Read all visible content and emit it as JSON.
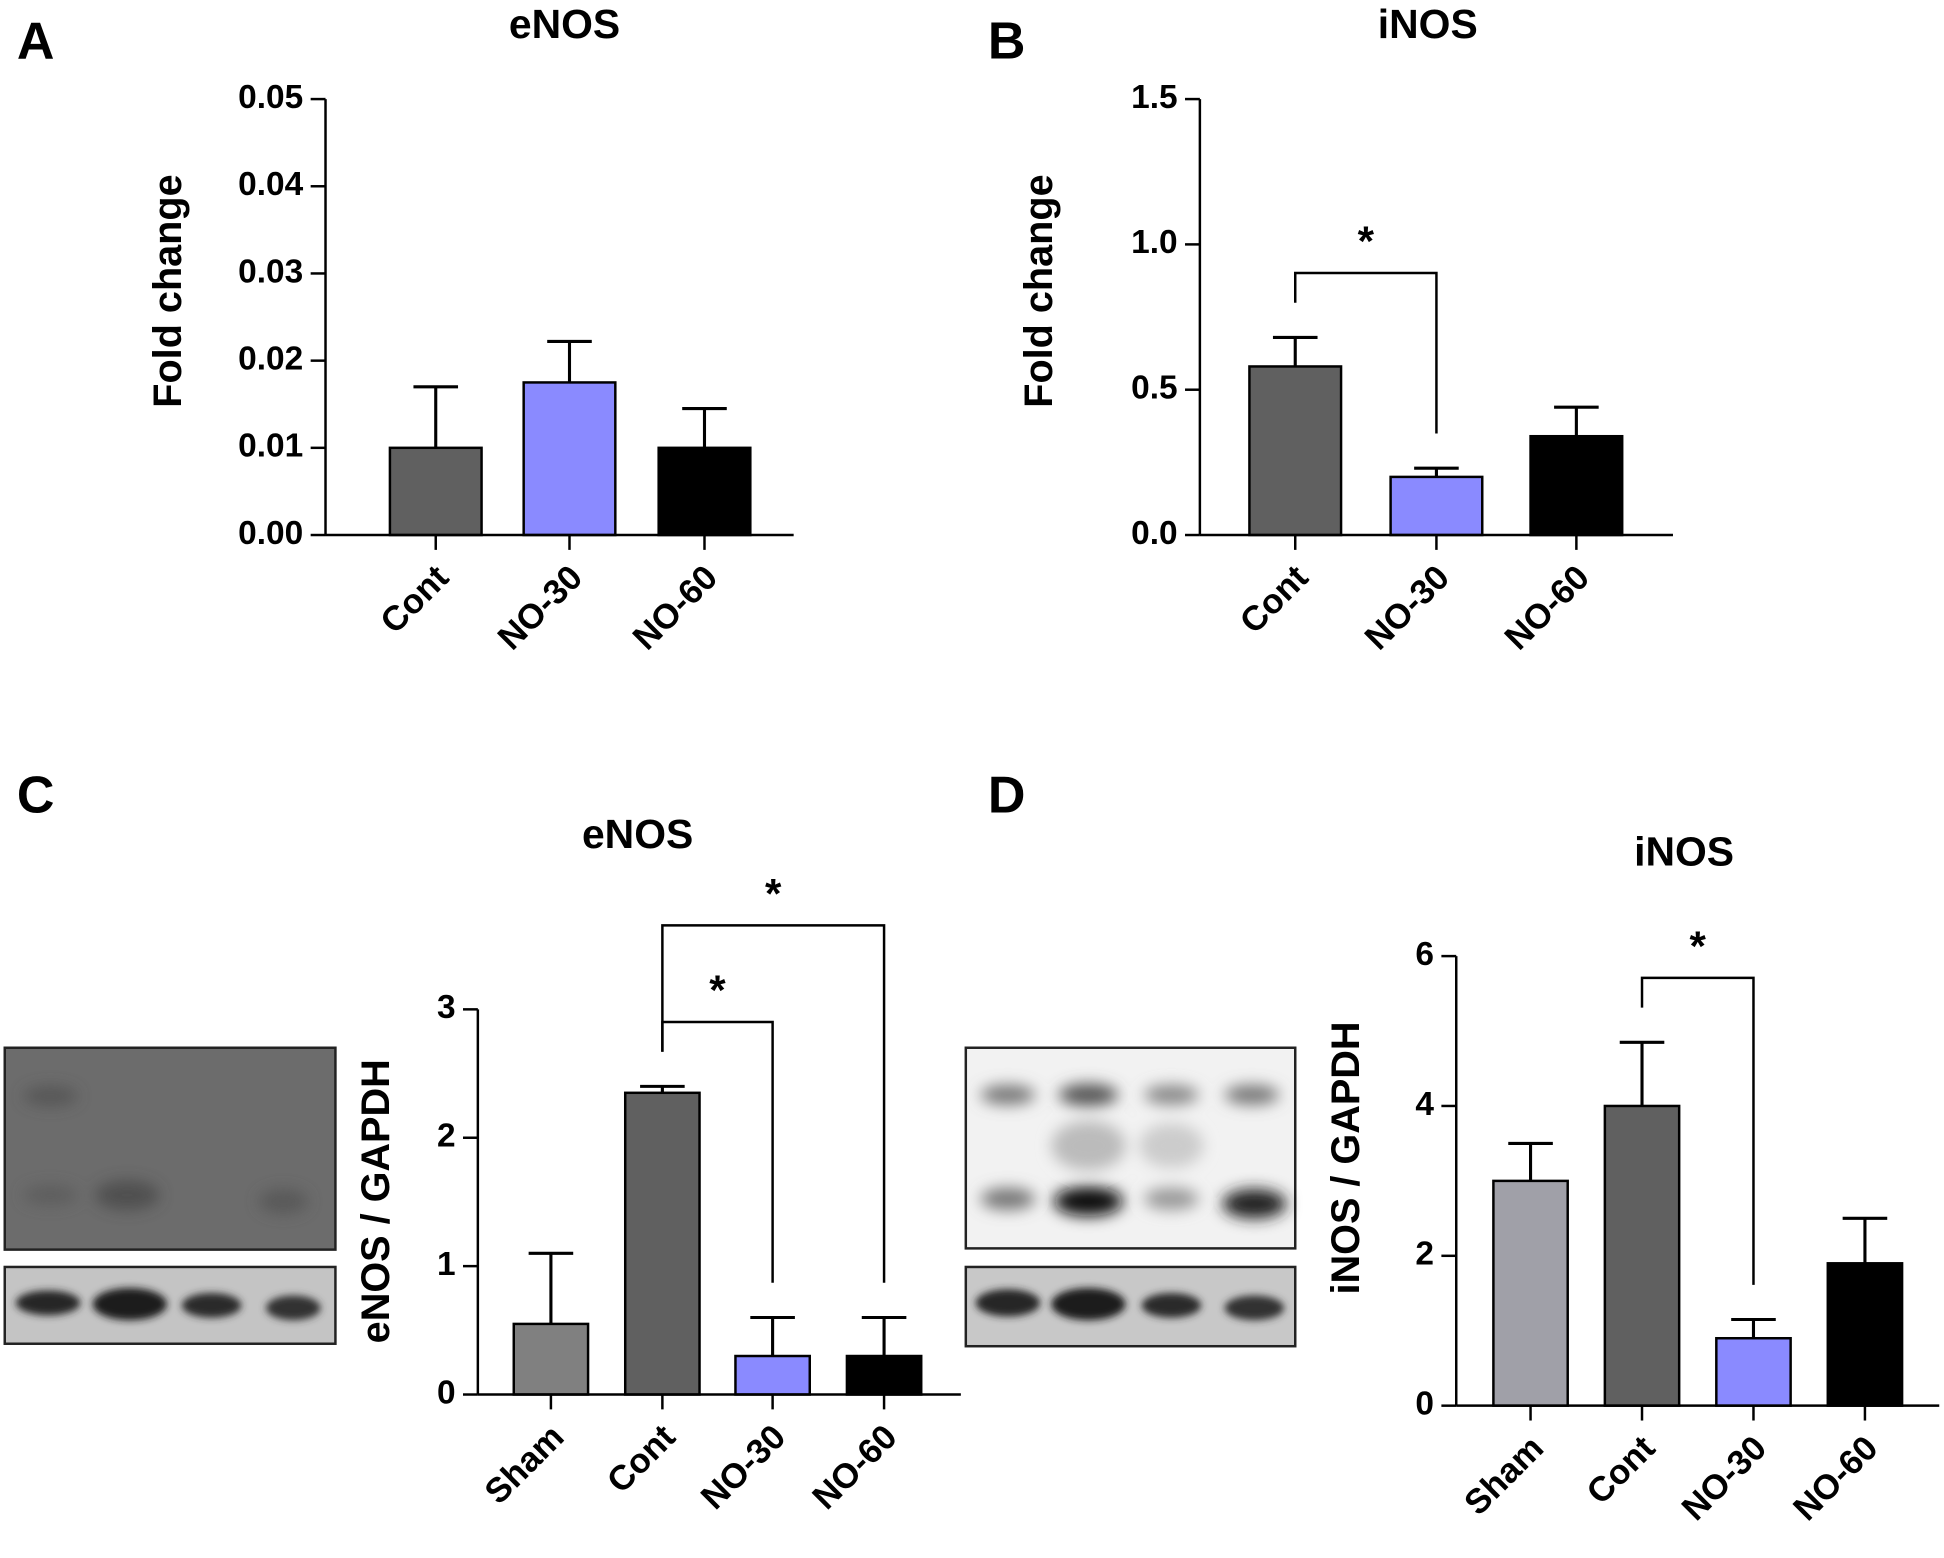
{
  "chart_data": [
    {
      "type": "bar",
      "panel": "A",
      "title": "eNOS",
      "y_label": "Fold change",
      "categories": [
        "Cont",
        "NO-30",
        "NO-60"
      ],
      "values": [
        0.01,
        0.0175,
        0.01
      ],
      "errors": [
        0.007,
        0.0047,
        0.0045
      ],
      "colors": [
        "#606060",
        "#8a8aff",
        "#000000"
      ],
      "ylim": [
        0,
        0.05
      ],
      "yticks": [
        {
          "value": 0,
          "label": "0.00"
        },
        0.01,
        0.02,
        0.03,
        0.04,
        0.05
      ],
      "annotations": []
    },
    {
      "type": "bar",
      "panel": "B",
      "title": "iNOS",
      "y_label": "Fold change",
      "categories": [
        "Cont",
        "NO-30",
        "NO-60"
      ],
      "values": [
        0.58,
        0.2,
        0.34
      ],
      "errors": [
        0.1,
        0.03,
        0.1
      ],
      "colors": [
        "#606060",
        "#8a8aff",
        "#000000"
      ],
      "ylim": [
        0,
        1.5
      ],
      "yticks": [
        {
          "value": 0,
          "label": "0.0"
        },
        0.5,
        {
          "value": 1,
          "label": "1.0"
        },
        1.5
      ],
      "annotations": [
        {
          "from": "Cont",
          "to": "NO-30",
          "label": "*"
        }
      ]
    },
    {
      "type": "bar",
      "panel": "C",
      "title": "eNOS",
      "y_label": "eNOS / GAPDH",
      "categories": [
        "Sham",
        "Cont",
        "NO-30",
        "NO-60"
      ],
      "values": [
        0.55,
        2.35,
        0.3,
        0.3
      ],
      "errors": [
        0.55,
        0.05,
        0.3,
        0.3
      ],
      "colors": [
        "#808080",
        "#606060",
        "#8a8aff",
        "#000000"
      ],
      "ylim": [
        0,
        3
      ],
      "yticks": [
        0,
        1,
        2,
        3
      ],
      "annotations": [
        {
          "from": "Cont",
          "to": "NO-30",
          "label": "*"
        },
        {
          "from": "Cont",
          "to": "NO-60",
          "label": "*"
        }
      ]
    },
    {
      "type": "bar",
      "panel": "D",
      "title": "iNOS",
      "y_label": "iNOS / GAPDH",
      "categories": [
        "Sham",
        "Cont",
        "NO-30",
        "NO-60"
      ],
      "values": [
        3.0,
        4.0,
        0.9,
        1.9
      ],
      "errors": [
        0.5,
        0.85,
        0.25,
        0.6
      ],
      "colors": [
        "#a0a0a8",
        "#606060",
        "#8a8aff",
        "#000000"
      ],
      "ylim": [
        0,
        6
      ],
      "yticks": [
        0,
        2,
        4,
        6
      ],
      "annotations": [
        {
          "from": "Cont",
          "to": "NO-30",
          "label": "*"
        }
      ]
    }
  ]
}
